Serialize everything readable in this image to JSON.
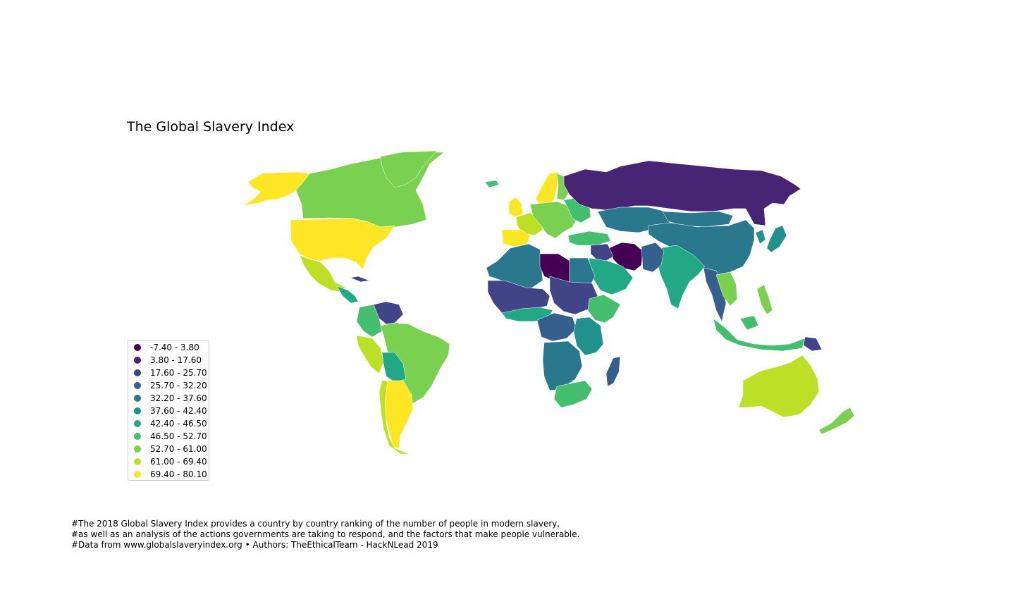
{
  "title": "The Global Slavery Index",
  "legend": {
    "items": [
      {
        "label": "-7.40 - 3.80",
        "color": "#440154"
      },
      {
        "label": "3.80 - 17.60",
        "color": "#482475"
      },
      {
        "label": "17.60 - 25.70",
        "color": "#414487"
      },
      {
        "label": "25.70 - 32.20",
        "color": "#355f8d"
      },
      {
        "label": "32.20 - 37.60",
        "color": "#2a788e"
      },
      {
        "label": "37.60 - 42.40",
        "color": "#21918c"
      },
      {
        "label": "42.40 - 46.50",
        "color": "#22a884"
      },
      {
        "label": "46.50 - 52.70",
        "color": "#44bf70"
      },
      {
        "label": "52.70 - 61.00",
        "color": "#7ad151"
      },
      {
        "label": "61.00 - 69.40",
        "color": "#bddf26"
      },
      {
        "label": "69.40 - 80.10",
        "color": "#fde725"
      }
    ]
  },
  "footnote": {
    "line1": "#The 2018 Global Slavery Index provides a country by country ranking of the number of people in modern slavery,",
    "line2": "#as well as an analysis of the actions governments are taking to respond, and the factors that make people vulnerable.",
    "line3": "#Data from www.globalslaveryindex.org • Authors: TheEthicalTeam - HackNLead 2019"
  },
  "regions": [
    {
      "name": "alaska",
      "class": 10
    },
    {
      "name": "canada",
      "class": 8
    },
    {
      "name": "greenland",
      "class": 8
    },
    {
      "name": "usa",
      "class": 10
    },
    {
      "name": "mexico",
      "class": 9
    },
    {
      "name": "central-america",
      "class": 6
    },
    {
      "name": "cuba",
      "class": 2
    },
    {
      "name": "venezuela",
      "class": 2
    },
    {
      "name": "colombia",
      "class": 7
    },
    {
      "name": "brazil",
      "class": 8
    },
    {
      "name": "peru",
      "class": 9
    },
    {
      "name": "bolivia",
      "class": 6
    },
    {
      "name": "argentina",
      "class": 10
    },
    {
      "name": "chile",
      "class": 9
    },
    {
      "name": "uk",
      "class": 10
    },
    {
      "name": "iceland",
      "class": 7
    },
    {
      "name": "scandinavia",
      "class": 10
    },
    {
      "name": "finland",
      "class": 8
    },
    {
      "name": "france",
      "class": 9
    },
    {
      "name": "iberia",
      "class": 10
    },
    {
      "name": "central-europe",
      "class": 8
    },
    {
      "name": "eastern-europe",
      "class": 7
    },
    {
      "name": "turkey",
      "class": 7
    },
    {
      "name": "russia",
      "class": 1
    },
    {
      "name": "kazakhstan",
      "class": 4
    },
    {
      "name": "mongolia",
      "class": 4
    },
    {
      "name": "china",
      "class": 4
    },
    {
      "name": "korea-japan",
      "class": 5
    },
    {
      "name": "iran",
      "class": 0
    },
    {
      "name": "iraq-syria",
      "class": 2
    },
    {
      "name": "saudi-arabia",
      "class": 6
    },
    {
      "name": "india",
      "class": 6
    },
    {
      "name": "pakistan-afghanistan",
      "class": 3
    },
    {
      "name": "southeast-asia",
      "class": 3
    },
    {
      "name": "thailand-vietnam",
      "class": 8
    },
    {
      "name": "indonesia",
      "class": 7
    },
    {
      "name": "philippines",
      "class": 8
    },
    {
      "name": "png",
      "class": 2
    },
    {
      "name": "australia",
      "class": 9
    },
    {
      "name": "new-zealand",
      "class": 8
    },
    {
      "name": "north-africa",
      "class": 4
    },
    {
      "name": "libya",
      "class": 0
    },
    {
      "name": "egypt",
      "class": 4
    },
    {
      "name": "west-africa",
      "class": 2
    },
    {
      "name": "chad-sudan",
      "class": 2
    },
    {
      "name": "ethiopia-somalia",
      "class": 7
    },
    {
      "name": "gulf-of-guinea",
      "class": 6
    },
    {
      "name": "central-africa",
      "class": 3
    },
    {
      "name": "east-africa",
      "class": 5
    },
    {
      "name": "angola-drc",
      "class": 4
    },
    {
      "name": "southern-africa",
      "class": 7
    },
    {
      "name": "madagascar",
      "class": 3
    }
  ]
}
